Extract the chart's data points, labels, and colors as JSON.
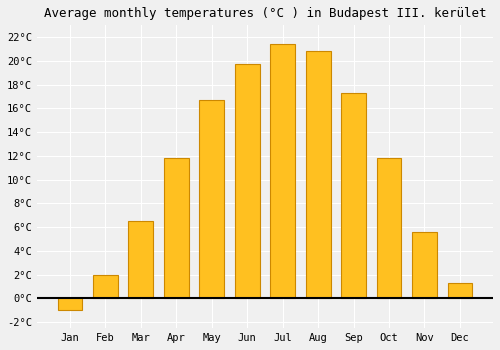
{
  "title": "Average monthly temperatures (°C ) in Budapest III. kerület",
  "months": [
    "Jan",
    "Feb",
    "Mar",
    "Apr",
    "May",
    "Jun",
    "Jul",
    "Aug",
    "Sep",
    "Oct",
    "Nov",
    "Dec"
  ],
  "values": [
    -1.0,
    2.0,
    6.5,
    11.8,
    16.7,
    19.7,
    21.4,
    20.8,
    17.3,
    11.8,
    5.6,
    1.3
  ],
  "bar_color": "#FFC020",
  "bar_edge_color": "#CC8800",
  "ylim": [
    -2.5,
    23.0
  ],
  "yticks": [
    -2,
    0,
    2,
    4,
    6,
    8,
    10,
    12,
    14,
    16,
    18,
    20,
    22
  ],
  "ytick_labels": [
    "-2°C",
    "0°C",
    "2°C",
    "4°C",
    "6°C",
    "8°C",
    "10°C",
    "12°C",
    "14°C",
    "16°C",
    "18°C",
    "20°C",
    "22°C"
  ],
  "background_color": "#f0f0f0",
  "grid_color": "#ffffff",
  "title_fontsize": 9,
  "tick_fontsize": 7.5,
  "bar_width": 0.7
}
